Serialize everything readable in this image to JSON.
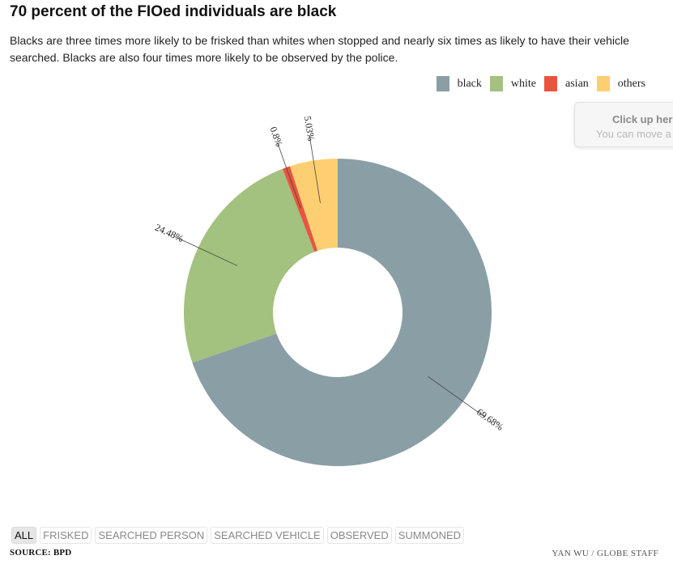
{
  "title": "70 percent of the FIOed individuals are black",
  "subtitle": "Blacks are three times more likely to be frisked than whites when stopped and nearly six times as likely to have their vehicle searched. Blacks are also four times more likely to be observed by the police.",
  "tooltip": {
    "title": "Click up her",
    "body": "You can move a"
  },
  "filters": [
    {
      "label": "ALL",
      "active": true
    },
    {
      "label": "FRISKED",
      "active": false
    },
    {
      "label": "SEARCHED PERSON",
      "active": false
    },
    {
      "label": "SEARCHED VEHICLE",
      "active": false
    },
    {
      "label": "OBSERVED",
      "active": false
    },
    {
      "label": "SUMMONED",
      "active": false
    }
  ],
  "source": "SOURCE: BPD",
  "credit": "YAN WU / GLOBE STAFF",
  "chart_data": {
    "type": "pie",
    "variant": "donut",
    "legend_position": "top-right",
    "categories": [
      "black",
      "white",
      "asian",
      "others"
    ],
    "values": [
      69.68,
      24.48,
      0.8,
      5.03
    ],
    "labels": [
      "69.68%",
      "24.48%",
      "0.8%",
      "5.03%"
    ],
    "colors": [
      "#8a9ea6",
      "#a3c17f",
      "#e8553e",
      "#fecf72"
    ]
  }
}
